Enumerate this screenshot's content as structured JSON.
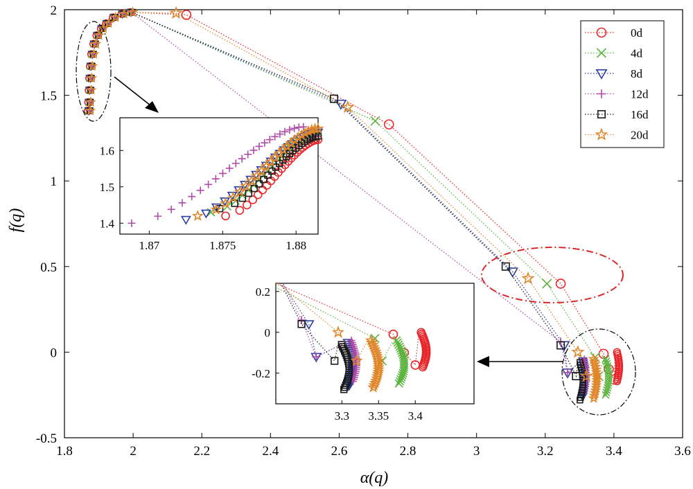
{
  "chart_data": {
    "type": "line",
    "title": "",
    "xlabel": "α(q)",
    "ylabel": "f(q)",
    "xlim": [
      1.8,
      3.6
    ],
    "ylim": [
      -0.5,
      2
    ],
    "xticks": [
      "1.8",
      "2",
      "2.2",
      "2.4",
      "2.6",
      "2.8",
      "3",
      "3.2",
      "3.4",
      "3.6"
    ],
    "yticks": [
      "-0.5",
      "0",
      "0.5",
      "1",
      "1.5",
      "2"
    ],
    "line_style": "dotted",
    "legend_position": "top-right",
    "series": [
      {
        "name": "0d",
        "color": "#e8262a",
        "marker": "circle",
        "points": [
          [
            2.155,
            1.97
          ],
          [
            2.745,
            1.33
          ],
          [
            3.245,
            0.4
          ],
          [
            3.37,
            -0.01
          ],
          [
            3.385,
            -0.1
          ],
          [
            3.4,
            -0.16
          ]
        ],
        "cluster": {
          "x": [
            3.405,
            3.415
          ],
          "y": [
            -0.17,
            0.0
          ]
        },
        "inset_zoom": {
          "x": 1.8752,
          "y": 1.42,
          "xmax": 1.8815,
          "ymax": 1.63
        }
      },
      {
        "name": "4d",
        "color": "#5cb43f",
        "marker": "x",
        "points": [
          [
            2.705,
            1.35
          ],
          [
            3.205,
            0.4
          ],
          [
            3.345,
            -0.03
          ],
          [
            3.355,
            -0.14
          ]
        ],
        "cluster": {
          "x": [
            3.37,
            3.385
          ],
          "y": [
            -0.25,
            -0.04
          ]
        },
        "inset_zoom": {
          "x": 1.8742,
          "y": 1.43,
          "xmax": 1.8815,
          "ymax": 1.65
        }
      },
      {
        "name": "8d",
        "color": "#2c3e9e",
        "marker": "triangle-down",
        "points": [
          [
            2.605,
            1.45
          ],
          [
            3.105,
            0.47
          ],
          [
            3.255,
            0.04
          ],
          [
            3.265,
            -0.12
          ]
        ],
        "cluster": {
          "x": [
            3.305,
            3.315
          ],
          "y": [
            -0.26,
            -0.05
          ]
        },
        "inset_zoom": {
          "x": 1.8725,
          "y": 1.41,
          "xmax": 1.8815,
          "ymax": 1.65
        }
      },
      {
        "name": "12d",
        "color": "#b04aa8",
        "marker": "plus",
        "points": [
          [
            3.245,
            0.06
          ],
          [
            3.265,
            -0.12
          ]
        ],
        "cluster": {
          "x": [
            3.31,
            3.32
          ],
          "y": [
            -0.24,
            -0.04
          ]
        },
        "inset_zoom": {
          "x": 1.8688,
          "y": 1.4,
          "xmax": 1.8805,
          "ymax": 1.665
        }
      },
      {
        "name": "16d",
        "color": "#1a1a1a",
        "marker": "square",
        "points": [
          [
            2.585,
            1.48
          ],
          [
            3.085,
            0.5
          ],
          [
            3.245,
            0.04
          ],
          [
            3.29,
            -0.14
          ]
        ],
        "cluster": {
          "x": [
            3.295,
            3.31
          ],
          "y": [
            -0.28,
            -0.06
          ]
        },
        "inset_zoom": {
          "x": 1.8748,
          "y": 1.44,
          "xmax": 1.8815,
          "ymax": 1.64
        }
      },
      {
        "name": "20d",
        "color": "#e0862a",
        "marker": "star",
        "points": [
          [
            2.125,
            1.98
          ],
          [
            2.625,
            1.43
          ],
          [
            3.15,
            0.43
          ],
          [
            3.295,
            0.0
          ],
          [
            3.32,
            -0.14
          ]
        ],
        "cluster": {
          "x": [
            3.335,
            3.35
          ],
          "y": [
            -0.27,
            -0.04
          ]
        },
        "inset_zoom": {
          "x": 1.8733,
          "y": 1.42,
          "xmax": 1.8815,
          "ymax": 1.66
        }
      }
    ],
    "inset_top_left": {
      "xlim": [
        1.868,
        1.8815
      ],
      "ylim": [
        1.37,
        1.69
      ],
      "xticks": [
        "1.87",
        "1.875",
        "1.88"
      ],
      "yticks": [
        "1.4",
        "1.5",
        "1.6"
      ]
    },
    "inset_bottom_right": {
      "xlim": [
        3.21,
        3.48
      ],
      "ylim": [
        -0.35,
        0.24
      ],
      "xticks": [
        "3.3",
        "3.35",
        "3.4"
      ],
      "yticks": [
        "-0.2",
        "0",
        "0.2"
      ]
    },
    "annotations": [
      "dash-dot ellipse around the left branch near α≈1.87 with an arrow to the upper inset",
      "red dash-dot ellipse around points near α≈3.1–3.3, f≈0.4",
      "dash-dot ellipse around the right clusters near α≈3.35 with an arrow to the lower inset"
    ]
  }
}
